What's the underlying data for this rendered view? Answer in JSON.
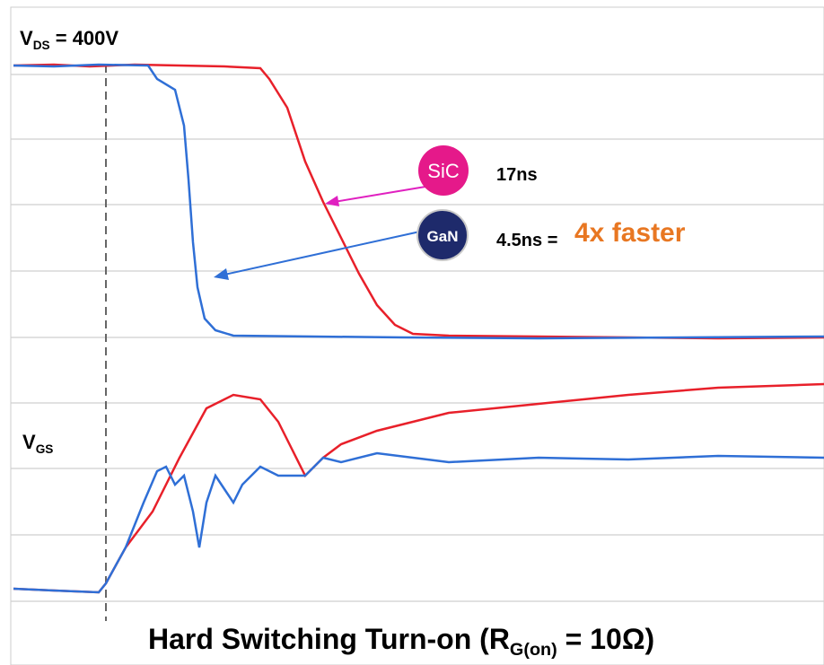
{
  "labels": {
    "vds": {
      "main": "V",
      "sub": "DS",
      "rest": " = 400V"
    },
    "vgs": {
      "main": "V",
      "sub": "GS"
    },
    "sic_badge": "SiC",
    "gan_badge": "GaN",
    "sic_time": "17ns",
    "gan_time": "4.5ns =",
    "speedup": "4x faster"
  },
  "title": {
    "main": "Hard Switching Turn-on  (R",
    "sub": "G(on)",
    "rest": " = 10Ω)"
  }
}
